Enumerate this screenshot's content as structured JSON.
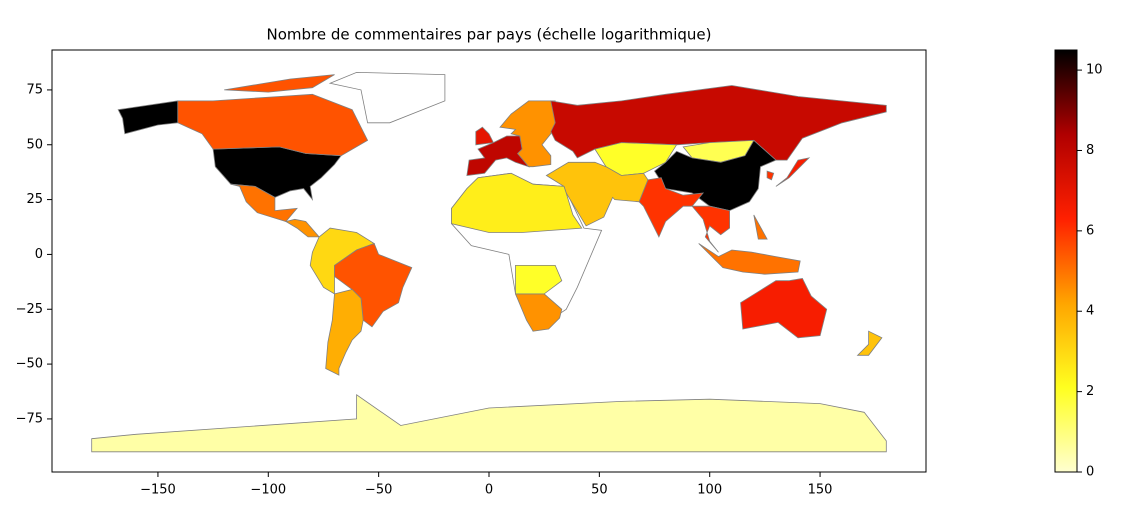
{
  "chart_data": {
    "type": "choropleth",
    "title": "Nombre de commentaires par pays (échelle logarithmique)",
    "xlim": [
      -198,
      198
    ],
    "ylim": [
      -99.2,
      93.2
    ],
    "xticks": [
      {
        "value": -150,
        "label": "−150"
      },
      {
        "value": -100,
        "label": "−100"
      },
      {
        "value": -50,
        "label": "−50"
      },
      0,
      50,
      100,
      150
    ],
    "yticks": [
      {
        "value": -75,
        "label": "−75"
      },
      {
        "value": -50,
        "label": "−50"
      },
      {
        "value": -25,
        "label": "−25"
      },
      0,
      25,
      50,
      75
    ],
    "values": [
      10.5,
      5.5,
      5,
      4.5,
      3,
      5.5,
      4,
      8,
      7,
      4.5,
      7.8,
      2,
      1.5,
      10.5,
      6,
      3.5,
      2.5,
      4.5,
      2,
      6,
      5,
      6.5,
      6,
      6.5,
      3.5,
      0.5
    ],
    "colormap": [
      "#ffffd0",
      "#ffff20",
      "#ffa500",
      "#ff2000",
      "#b00000",
      "#000000"
    ],
    "clim": [
      0,
      10.5
    ],
    "cticks": [
      0,
      2,
      4,
      6,
      8,
      10
    ],
    "edgecolor": "#808080"
  }
}
